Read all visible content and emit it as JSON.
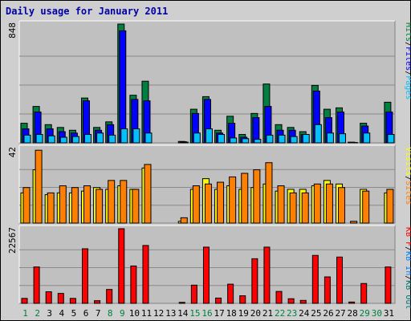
{
  "title": "Daily usage for January 2011",
  "colors": {
    "hits": "#008040",
    "files": "#0000ff",
    "pages": "#00c0ff",
    "visits": "#ffff00",
    "sites": "#ff8000",
    "kb_in": "#0080ff",
    "kb_out": "#006f6f",
    "kb_f": "#ff0000",
    "title": "#0000a8",
    "axis_green": "#008040",
    "axis_black": "#000000"
  },
  "chart_data": [
    {
      "type": "bar",
      "name_panel": "top",
      "y_max_label": "848",
      "ylim": [
        0,
        848
      ],
      "x": [
        1,
        2,
        3,
        4,
        5,
        6,
        7,
        8,
        9,
        10,
        11,
        12,
        13,
        14,
        15,
        16,
        17,
        18,
        19,
        20,
        21,
        22,
        23,
        24,
        25,
        26,
        27,
        28,
        29,
        30,
        31
      ],
      "legend": [
        "Hits",
        "/",
        "Files",
        "/",
        "Pages"
      ],
      "series": [
        {
          "name": "Hits",
          "values": [
            140,
            260,
            130,
            110,
            90,
            320,
            110,
            150,
            848,
            340,
            440,
            0,
            0,
            10,
            240,
            330,
            90,
            190,
            60,
            210,
            420,
            130,
            110,
            80,
            410,
            240,
            250,
            5,
            140,
            0,
            290
          ]
        },
        {
          "name": "Files",
          "values": [
            100,
            220,
            100,
            80,
            70,
            300,
            90,
            130,
            800,
            310,
            300,
            0,
            0,
            8,
            210,
            310,
            70,
            140,
            40,
            180,
            260,
            90,
            90,
            60,
            370,
            180,
            220,
            3,
            120,
            0,
            220
          ]
        },
        {
          "name": "Pages",
          "values": [
            55,
            60,
            50,
            40,
            45,
            60,
            70,
            55,
            100,
            100,
            70,
            0,
            0,
            5,
            70,
            100,
            60,
            35,
            30,
            25,
            55,
            55,
            45,
            60,
            130,
            70,
            65,
            2,
            70,
            0,
            60
          ]
        }
      ]
    },
    {
      "type": "bar",
      "name_panel": "middle",
      "y_max_label": "42",
      "ylim": [
        0,
        42
      ],
      "x": [
        1,
        2,
        3,
        4,
        5,
        6,
        7,
        8,
        9,
        10,
        11,
        12,
        13,
        14,
        15,
        16,
        17,
        18,
        19,
        20,
        21,
        22,
        23,
        24,
        25,
        26,
        27,
        28,
        29,
        30,
        31
      ],
      "legend": [
        "Visits",
        "/",
        "Sites"
      ],
      "series": [
        {
          "name": "Visits",
          "values": [
            17,
            30,
            16,
            17,
            17,
            18,
            20,
            19,
            21,
            19,
            31,
            0,
            0,
            1,
            19,
            25,
            19,
            21,
            19,
            20,
            22,
            18,
            19,
            19,
            21,
            24,
            22,
            0,
            19,
            0,
            17
          ]
        },
        {
          "name": "Sites",
          "values": [
            20,
            41,
            17,
            21,
            20,
            21,
            19,
            24,
            24,
            19,
            33,
            0,
            0,
            3,
            21,
            22,
            23,
            26,
            28,
            30,
            34,
            21,
            17,
            17,
            22,
            22,
            20,
            1,
            18,
            0,
            19
          ]
        }
      ]
    },
    {
      "type": "bar",
      "name_panel": "bottom",
      "y_max_label": "22567",
      "ylim": [
        0,
        22567
      ],
      "x": [
        1,
        2,
        3,
        4,
        5,
        6,
        7,
        8,
        9,
        10,
        11,
        12,
        13,
        14,
        15,
        16,
        17,
        18,
        19,
        20,
        21,
        22,
        23,
        24,
        25,
        26,
        27,
        28,
        29,
        30,
        31
      ],
      "legend": [
        "KB F",
        "/",
        "KB In",
        "/",
        "KB Out"
      ],
      "series": [
        {
          "name": "KB F",
          "values": [
            1500,
            11000,
            3500,
            3000,
            1500,
            16500,
            800,
            4200,
            22567,
            11300,
            17500,
            0,
            0,
            300,
            5500,
            17000,
            1600,
            5800,
            2300,
            13500,
            17000,
            3600,
            1400,
            900,
            14500,
            8000,
            14000,
            400,
            6000,
            0,
            11000
          ]
        }
      ],
      "x_label_colors": {
        "green": [
          1,
          2,
          8,
          9,
          15,
          16,
          22,
          23,
          29,
          30
        ]
      }
    }
  ]
}
